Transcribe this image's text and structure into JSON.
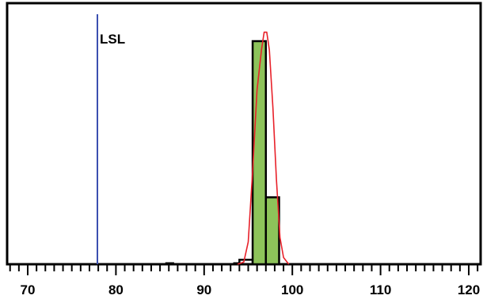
{
  "chart_data": {
    "type": "bar",
    "title": "",
    "xlabel": "",
    "ylabel": "",
    "xlim": [
      68,
      122
    ],
    "ylim": [
      0,
      100
    ],
    "grid": false,
    "x_ticks": [
      {
        "value": 70,
        "label": "70"
      },
      {
        "value": 80,
        "label": "80"
      },
      {
        "value": 90,
        "label": "90"
      },
      {
        "value": 100,
        "label": "100"
      },
      {
        "value": 110,
        "label": "110"
      },
      {
        "value": 120,
        "label": "120"
      }
    ],
    "minor_tick_step": 1,
    "histogram": {
      "bin_width": 1.5,
      "bins": [
        {
          "x0": 94.0,
          "x1": 95.5,
          "count": 2
        },
        {
          "x0": 95.5,
          "x1": 97.0,
          "count": 100
        },
        {
          "x0": 97.0,
          "x1": 98.5,
          "count": 30
        },
        {
          "x0": 98.5,
          "x1": 100.0,
          "count": 0
        }
      ],
      "highlight_range": [
        95.5,
        99.0
      ],
      "fill_color": "#8dc35a",
      "edge_color": "#000000"
    },
    "reference_lines": [
      {
        "name": "LSL",
        "label": "LSL",
        "x": 77.9,
        "color": "#3a4fb0"
      }
    ],
    "fit_curve": {
      "color": "#e8212a",
      "points": [
        [
          93.8,
          0
        ],
        [
          94.5,
          1
        ],
        [
          95.0,
          10
        ],
        [
          95.5,
          42
        ],
        [
          96.0,
          78
        ],
        [
          96.5,
          96
        ],
        [
          96.8,
          104
        ],
        [
          97.1,
          104
        ],
        [
          97.4,
          96
        ],
        [
          97.8,
          70
        ],
        [
          98.2,
          38
        ],
        [
          98.6,
          12
        ],
        [
          99.0,
          3
        ],
        [
          99.6,
          0
        ]
      ]
    },
    "stray_marks": [
      {
        "x0": 85.6,
        "x1": 86.6
      },
      {
        "x0": 93.3,
        "x1": 94.0
      }
    ]
  }
}
